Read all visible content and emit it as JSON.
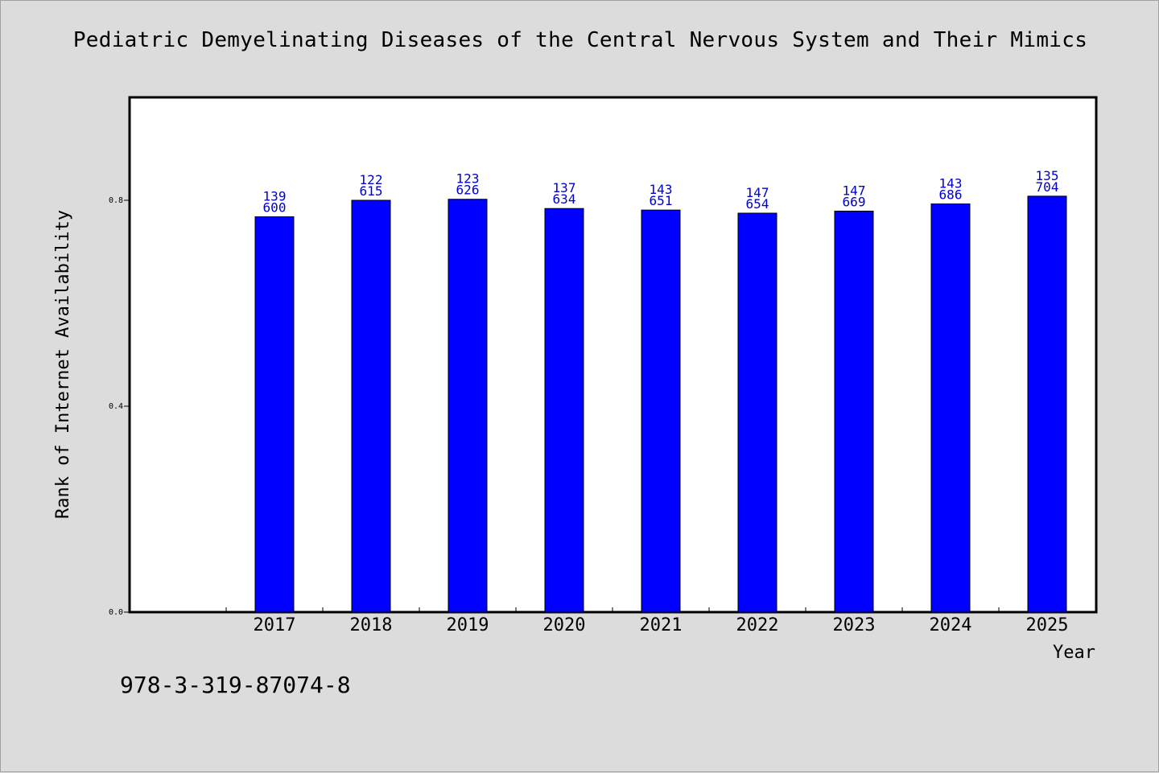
{
  "title": "Pediatric Demyelinating Diseases of the Central Nervous System and Their Mimics",
  "isbn": "978-3-319-87074-8",
  "colors": {
    "background": "#dcdcdc",
    "plot_background": "#ffffff",
    "bar": "#0000ff",
    "label": "#0000cc"
  },
  "chart_data": {
    "type": "bar",
    "xlabel": "Year",
    "ylabel": "Rank of Internet Availability",
    "categories": [
      "2017",
      "2018",
      "2019",
      "2020",
      "2021",
      "2022",
      "2023",
      "2024",
      "2025"
    ],
    "values": [
      0.768,
      0.8,
      0.802,
      0.784,
      0.781,
      0.775,
      0.779,
      0.793,
      0.808
    ],
    "label_top": [
      "139",
      "122",
      "123",
      "137",
      "143",
      "147",
      "147",
      "143",
      "135"
    ],
    "label_bottom": [
      "600",
      "615",
      "626",
      "634",
      "651",
      "654",
      "669",
      "686",
      "704"
    ],
    "yticks": [
      "0.0",
      "0.4",
      "0.8"
    ],
    "ytick_values": [
      0.0,
      0.4,
      0.8
    ],
    "ylim": [
      0,
      1.0
    ],
    "grid": false,
    "legend": "none"
  }
}
